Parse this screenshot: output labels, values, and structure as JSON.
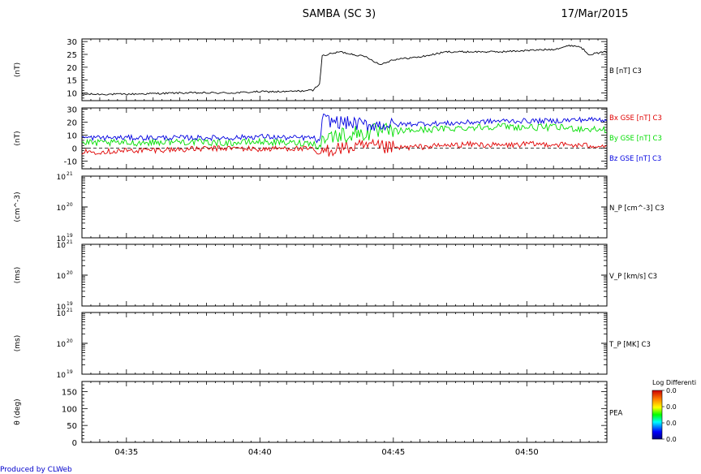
{
  "header": {
    "title": "SAMBA (SC 3)",
    "date": "17/Mar/2015"
  },
  "footer": {
    "credit": "Produced by CLWeb"
  },
  "colors": {
    "bx": "#e00000",
    "by": "#00dd00",
    "bz": "#0000e0",
    "b": "#000000",
    "frame": "#000000"
  },
  "chart_data": [
    {
      "type": "line",
      "ylabel": "(nT)",
      "ylim": [
        7,
        31
      ],
      "yticks": [
        10,
        15,
        20,
        25,
        30
      ],
      "series": [
        {
          "name": "B [nT] C3",
          "color": "#000000",
          "x": [
            "04:33:20",
            "04:35",
            "04:37",
            "04:39",
            "04:40",
            "04:41",
            "04:42",
            "04:42:15",
            "04:42:20",
            "04:43",
            "04:44",
            "04:44:30",
            "04:45",
            "04:46",
            "04:47",
            "04:48",
            "04:49",
            "04:50",
            "04:51",
            "04:51:40",
            "04:52",
            "04:52:20",
            "04:53"
          ],
          "values": [
            9.5,
            9.5,
            10,
            10,
            10.5,
            10.5,
            11,
            14,
            24.5,
            26,
            24,
            21,
            23,
            24,
            26,
            26,
            26,
            26.5,
            27,
            28.5,
            28,
            25,
            26
          ]
        }
      ]
    },
    {
      "type": "line",
      "ylabel": "(nT)",
      "ylim": [
        -16,
        31
      ],
      "yticks": [
        -10,
        0,
        10,
        20,
        30
      ],
      "zero_line": true,
      "series": [
        {
          "name": "Bx GSE [nT] C3",
          "color": "#e00000",
          "x": [
            "04:33:20",
            "04:35",
            "04:37",
            "04:39",
            "04:40",
            "04:41",
            "04:42",
            "04:42:15",
            "04:42:20",
            "04:43",
            "04:44",
            "04:45",
            "04:46",
            "04:47",
            "04:48",
            "04:49",
            "04:50",
            "04:51",
            "04:52",
            "04:53"
          ],
          "values": [
            -3,
            -2,
            -1,
            0,
            -1,
            0,
            -1,
            -6,
            -2,
            0,
            1,
            0,
            1,
            2,
            3,
            2,
            3,
            3,
            2,
            2
          ]
        },
        {
          "name": "By GSE [nT] C3",
          "color": "#00dd00",
          "x": [
            "04:33:20",
            "04:35",
            "04:37",
            "04:39",
            "04:40",
            "04:41",
            "04:42",
            "04:42:15",
            "04:42:20",
            "04:43",
            "04:44",
            "04:45",
            "04:46",
            "04:47",
            "04:48",
            "04:49",
            "04:50",
            "04:51",
            "04:52",
            "04:53"
          ],
          "values": [
            4,
            4,
            5,
            4,
            5,
            4,
            4,
            0,
            8,
            10,
            12,
            13,
            14,
            15,
            16,
            17,
            16,
            16,
            15,
            14
          ]
        },
        {
          "name": "Bz GSE [nT] C3",
          "color": "#0000e0",
          "x": [
            "04:33:20",
            "04:35",
            "04:37",
            "04:39",
            "04:40",
            "04:41",
            "04:42",
            "04:42:15",
            "04:42:20",
            "04:43",
            "04:44",
            "04:45",
            "04:46",
            "04:47",
            "04:48",
            "04:49",
            "04:50",
            "04:51",
            "04:52",
            "04:53"
          ],
          "values": [
            8,
            8,
            8,
            8,
            9,
            8,
            8,
            4,
            22,
            20,
            18,
            18,
            19,
            19,
            20,
            21,
            21,
            21,
            22,
            22
          ]
        }
      ]
    },
    {
      "type": "line",
      "ylabel": "(cm^-3)",
      "ylim": [
        "10^19",
        "10^21"
      ],
      "scale": "log",
      "ticks": [
        "10",
        "10",
        "10"
      ],
      "tick_exponents": [
        "21",
        "20",
        "19"
      ],
      "series": [
        {
          "name": "N_P [cm^-3] C3",
          "values": []
        }
      ]
    },
    {
      "type": "line",
      "ylabel": "(ms)",
      "ylim": [
        "10^19",
        "10^21"
      ],
      "scale": "log",
      "ticks": [
        "10",
        "10",
        "10"
      ],
      "tick_exponents": [
        "21",
        "20",
        "19"
      ],
      "series": [
        {
          "name": "V_P [km/s] C3",
          "values": []
        }
      ]
    },
    {
      "type": "line",
      "ylabel": "(ms)",
      "ylim": [
        "10^19",
        "10^21"
      ],
      "scale": "log",
      "ticks": [
        "10",
        "10",
        "10"
      ],
      "tick_exponents": [
        "21",
        "20",
        "19"
      ],
      "series": [
        {
          "name": "T_P [MK] C3",
          "values": []
        }
      ]
    },
    {
      "type": "heatmap",
      "ylabel": "θ (deg)",
      "ylim": [
        0,
        180
      ],
      "yticks": [
        0,
        50,
        100,
        150
      ],
      "series": [
        {
          "name": "PEA",
          "values": []
        }
      ],
      "colorbar": {
        "label": "Log Differenti",
        "ticks": [
          "0.0",
          "0.0",
          "0.0",
          "0.0"
        ]
      }
    }
  ],
  "xaxis": {
    "range": [
      "04:33:20",
      "04:53"
    ],
    "ticks": [
      "04:35",
      "04:40",
      "04:45",
      "04:50"
    ]
  }
}
